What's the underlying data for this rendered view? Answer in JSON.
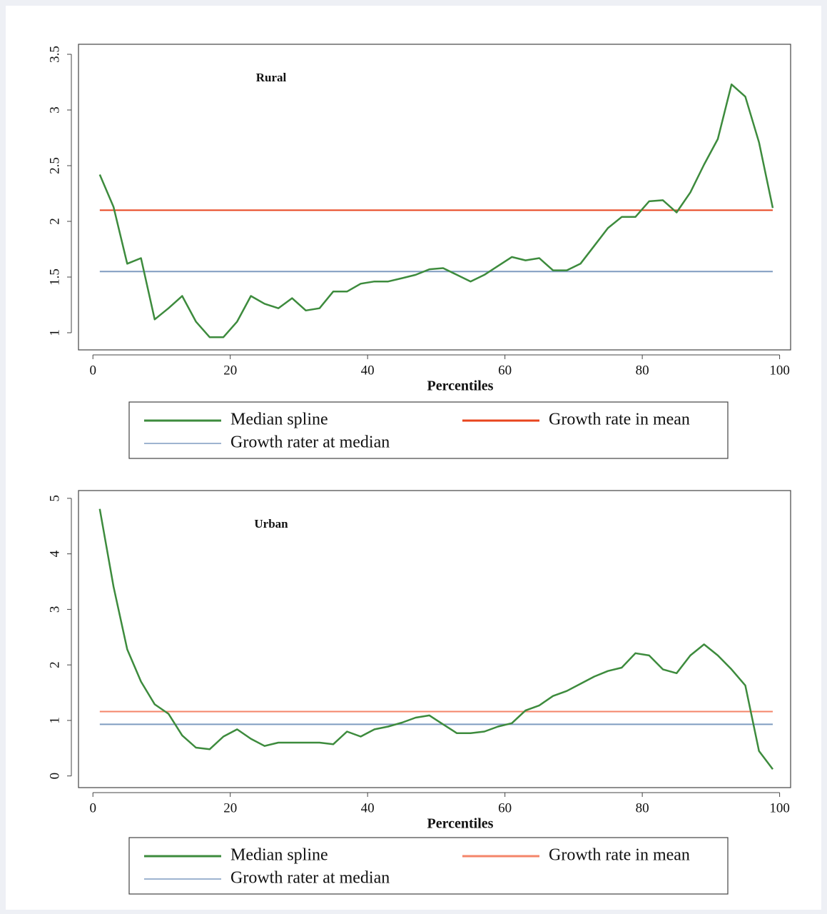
{
  "chart_data": [
    {
      "type": "line",
      "title": "Rural",
      "xlabel": "Percentiles",
      "x": [
        1,
        3,
        5,
        7,
        9,
        11,
        13,
        15,
        17,
        19,
        21,
        23,
        25,
        27,
        29,
        31,
        33,
        35,
        37,
        39,
        41,
        43,
        45,
        47,
        49,
        51,
        53,
        55,
        57,
        59,
        61,
        63,
        65,
        67,
        69,
        71,
        73,
        75,
        77,
        79,
        81,
        83,
        85,
        87,
        89,
        91,
        93,
        95,
        97,
        99
      ],
      "series": [
        {
          "name": "Median spline",
          "color": "#3d8b3d",
          "values": [
            2.42,
            2.13,
            1.62,
            1.67,
            1.12,
            1.22,
            1.33,
            1.1,
            0.96,
            0.96,
            1.1,
            1.33,
            1.26,
            1.22,
            1.31,
            1.2,
            1.22,
            1.37,
            1.37,
            1.44,
            1.46,
            1.46,
            1.49,
            1.52,
            1.57,
            1.58,
            1.52,
            1.46,
            1.52,
            1.6,
            1.68,
            1.65,
            1.67,
            1.56,
            1.56,
            1.62,
            1.78,
            1.94,
            2.04,
            2.04,
            2.18,
            2.19,
            2.08,
            2.26,
            2.51,
            2.74,
            3.23,
            3.12,
            2.71,
            2.12
          ]
        }
      ],
      "reference_lines": [
        {
          "name": "Growth rate in mean",
          "color": "#e8441e",
          "value": 2.1
        },
        {
          "name": "Growth rater at median",
          "color": "#7f9cc0",
          "value": 1.55
        }
      ],
      "xlim": [
        -2.1,
        101.6
      ],
      "ylim": [
        0.846,
        3.59
      ],
      "xticks": [
        0,
        20,
        40,
        60,
        80,
        100
      ],
      "yticks": [
        1,
        1.5,
        2,
        2.5,
        3,
        3.5
      ]
    },
    {
      "type": "line",
      "title": "Urban",
      "xlabel": "Percentiles",
      "x": [
        1,
        3,
        5,
        7,
        9,
        11,
        13,
        15,
        17,
        19,
        21,
        23,
        25,
        27,
        29,
        31,
        33,
        35,
        37,
        39,
        41,
        43,
        45,
        47,
        49,
        51,
        53,
        55,
        57,
        59,
        61,
        63,
        65,
        67,
        69,
        71,
        73,
        75,
        77,
        79,
        81,
        83,
        85,
        87,
        89,
        91,
        93,
        95,
        97,
        99
      ],
      "series": [
        {
          "name": "Median spline",
          "color": "#3d8b3d",
          "values": [
            4.81,
            3.41,
            2.28,
            1.7,
            1.29,
            1.12,
            0.73,
            0.51,
            0.48,
            0.71,
            0.84,
            0.67,
            0.54,
            0.6,
            0.6,
            0.6,
            0.6,
            0.57,
            0.8,
            0.71,
            0.84,
            0.89,
            0.96,
            1.05,
            1.09,
            0.93,
            0.77,
            0.77,
            0.8,
            0.89,
            0.95,
            1.18,
            1.27,
            1.44,
            1.53,
            1.66,
            1.79,
            1.89,
            1.95,
            2.21,
            2.17,
            1.92,
            1.85,
            2.17,
            2.37,
            2.17,
            1.92,
            1.63,
            0.45,
            0.12
          ]
        }
      ],
      "reference_lines": [
        {
          "name": "Growth rate in mean",
          "color": "#f4856a",
          "value": 1.16
        },
        {
          "name": "Growth rater at median",
          "color": "#7f9cc0",
          "value": 0.93
        }
      ],
      "xlim": [
        -2.1,
        101.6
      ],
      "ylim": [
        -0.21,
        5.14
      ],
      "xticks": [
        0,
        20,
        40,
        60,
        80,
        100
      ],
      "yticks": [
        0,
        1,
        2,
        3,
        4,
        5
      ]
    }
  ]
}
